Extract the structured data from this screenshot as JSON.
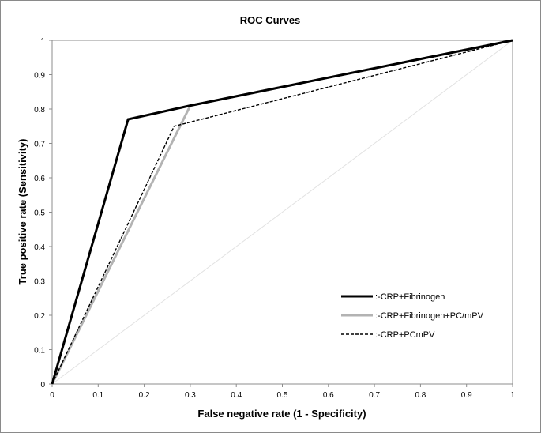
{
  "chart_data": {
    "type": "line",
    "title": "ROC Curves",
    "xlabel": "False negative rate (1 - Specificity)",
    "ylabel": "True positive rate (Sensitivity)",
    "xlim": [
      0,
      1
    ],
    "ylim": [
      0,
      1
    ],
    "xticks": [
      "0",
      "0.1",
      "0.2",
      "0.3",
      "0.4",
      "0.5",
      "0.6",
      "0.7",
      "0.8",
      "0.9",
      "1"
    ],
    "yticks": [
      "0",
      "0.1",
      "0.2",
      "0.3",
      "0.4",
      "0.5",
      "0.6",
      "0.7",
      "0.8",
      "0.9",
      "1"
    ],
    "grid": false,
    "legend_position": "bottom-right",
    "reference_line": {
      "x": [
        0,
        1
      ],
      "y": [
        0,
        1
      ],
      "color": "#e2e2e2"
    },
    "series": [
      {
        "name": ":-CRP+Fibrinogen",
        "x": [
          0,
          0.165,
          0.3,
          1
        ],
        "y": [
          0,
          0.77,
          0.81,
          1
        ],
        "color": "#000000",
        "style": "solid-thick"
      },
      {
        "name": ":-CRP+Fibrinogen+PC/mPV",
        "x": [
          0,
          0.3,
          1
        ],
        "y": [
          0,
          0.81,
          1
        ],
        "color": "#b3b3b3",
        "style": "solid-thick"
      },
      {
        "name": ":-CRP+PCmPV",
        "x": [
          0,
          0.265,
          1
        ],
        "y": [
          0,
          0.75,
          1
        ],
        "color": "#000000",
        "style": "dashed"
      }
    ]
  }
}
